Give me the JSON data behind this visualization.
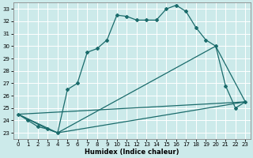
{
  "xlabel": "Humidex (Indice chaleur)",
  "bg_color": "#cceaea",
  "line_color": "#1a6b6b",
  "grid_color": "#ffffff",
  "xlim": [
    -0.5,
    23.5
  ],
  "ylim": [
    22.5,
    33.5
  ],
  "yticks": [
    23,
    24,
    25,
    26,
    27,
    28,
    29,
    30,
    31,
    32,
    33
  ],
  "xticks": [
    0,
    1,
    2,
    3,
    4,
    5,
    6,
    7,
    8,
    9,
    10,
    11,
    12,
    13,
    14,
    15,
    16,
    17,
    18,
    19,
    20,
    21,
    22,
    23
  ],
  "series1_x": [
    0,
    1,
    2,
    3,
    4,
    5,
    6,
    7,
    8,
    9,
    10,
    11,
    12,
    13,
    14,
    15,
    16,
    17,
    18,
    19,
    20,
    21,
    22,
    23
  ],
  "series1_y": [
    24.5,
    24.0,
    23.5,
    23.3,
    23.0,
    26.5,
    27.0,
    29.5,
    29.8,
    30.5,
    32.5,
    32.4,
    32.1,
    32.1,
    32.1,
    33.0,
    33.3,
    32.8,
    31.5,
    30.5,
    30.0,
    26.8,
    25.0,
    25.5
  ],
  "series2_x": [
    0,
    23
  ],
  "series2_y": [
    24.5,
    25.5
  ],
  "series3_x": [
    0,
    3,
    4,
    23
  ],
  "series3_y": [
    24.5,
    23.3,
    23.0,
    25.5
  ],
  "series4_x": [
    0,
    4,
    20,
    23
  ],
  "series4_y": [
    24.5,
    23.0,
    30.0,
    25.5
  ]
}
